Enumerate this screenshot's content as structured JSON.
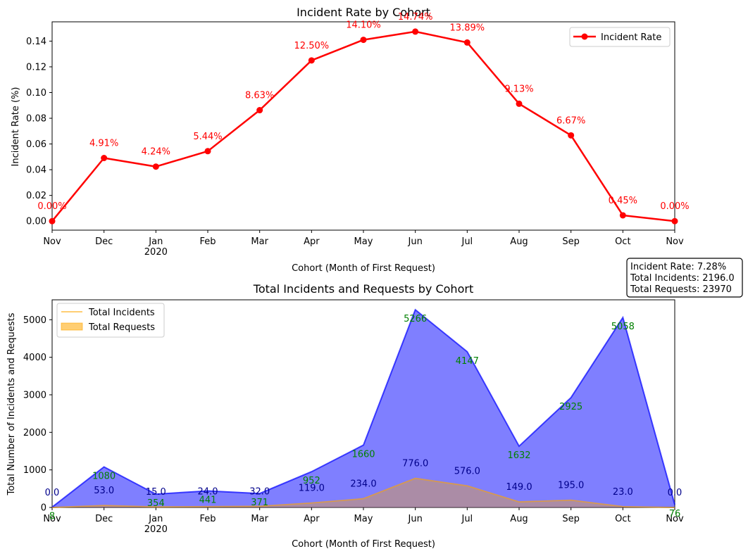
{
  "chart_data": [
    {
      "type": "line",
      "title": "Incident Rate by Cohort",
      "xlabel": "Cohort (Month of First Request)",
      "ylabel": "Incident Rate (%)",
      "categories": [
        "Nov",
        "Dec",
        "Jan",
        "Feb",
        "Mar",
        "Apr",
        "May",
        "Jun",
        "Jul",
        "Aug",
        "Sep",
        "Oct",
        "Nov"
      ],
      "year_label": "2020",
      "year_label_under": "Jan",
      "ylim": [
        -0.007,
        0.155
      ],
      "yticks": [
        "0.00",
        "0.02",
        "0.04",
        "0.06",
        "0.08",
        "0.10",
        "0.12",
        "0.14"
      ],
      "ytick_values": [
        0,
        0.02,
        0.04,
        0.06,
        0.08,
        0.1,
        0.12,
        0.14
      ],
      "series": [
        {
          "name": "Incident Rate",
          "color": "#ff0000",
          "values": [
            0.0,
            0.0491,
            0.0424,
            0.0544,
            0.0863,
            0.125,
            0.141,
            0.1474,
            0.1389,
            0.0913,
            0.0667,
            0.0045,
            0.0
          ],
          "labels": [
            "0.00%",
            "4.91%",
            "4.24%",
            "5.44%",
            "8.63%",
            "12.50%",
            "14.10%",
            "14.74%",
            "13.89%",
            "9.13%",
            "6.67%",
            "0.45%",
            "0.00%"
          ]
        }
      ],
      "legend": {
        "position": "top-right",
        "entries": [
          "Incident Rate"
        ]
      },
      "grid": false
    },
    {
      "type": "area",
      "title": "Total Incidents and Requests by Cohort",
      "xlabel": "Cohort (Month of First Request)",
      "ylabel": "Total Number of Incidents and Requests",
      "categories": [
        "Nov",
        "Dec",
        "Jan",
        "Feb",
        "Mar",
        "Apr",
        "May",
        "Jun",
        "Jul",
        "Aug",
        "Sep",
        "Oct",
        "Nov"
      ],
      "year_label": "2020",
      "year_label_under": "Jan",
      "ylim": [
        0,
        5530
      ],
      "yticks": [
        "0",
        "1000",
        "2000",
        "3000",
        "4000",
        "5000"
      ],
      "ytick_values": [
        0,
        1000,
        2000,
        3000,
        4000,
        5000
      ],
      "series": [
        {
          "name": "Total Requests",
          "color": "#0000ff",
          "values": [
            8,
            1080,
            354,
            441,
            371,
            952,
            1660,
            5266,
            4147,
            1632,
            2925,
            5058,
            76
          ],
          "labels": [
            "8",
            "1080",
            "354",
            "441",
            "371",
            "952",
            "1660",
            "5266",
            "4147",
            "1632",
            "2925",
            "5058",
            "76"
          ],
          "label_color": "#008000"
        },
        {
          "name": "Total Incidents",
          "color": "#ffa500",
          "values": [
            0,
            53,
            15,
            24,
            32,
            119,
            234,
            776,
            576,
            149,
            195,
            23,
            0
          ],
          "labels": [
            "0.0",
            "53.0",
            "15.0",
            "24.0",
            "32.0",
            "119.0",
            "234.0",
            "776.0",
            "576.0",
            "149.0",
            "195.0",
            "23.0",
            "0.0"
          ],
          "label_color": "#00008b"
        }
      ],
      "legend": {
        "position": "top-left",
        "entries": [
          "Total Incidents",
          "Total Requests"
        ]
      },
      "grid": false,
      "summary": {
        "lines": [
          "Incident Rate: 7.28%",
          "Total Incidents: 2196.0",
          "Total Requests: 23970"
        ]
      }
    }
  ]
}
